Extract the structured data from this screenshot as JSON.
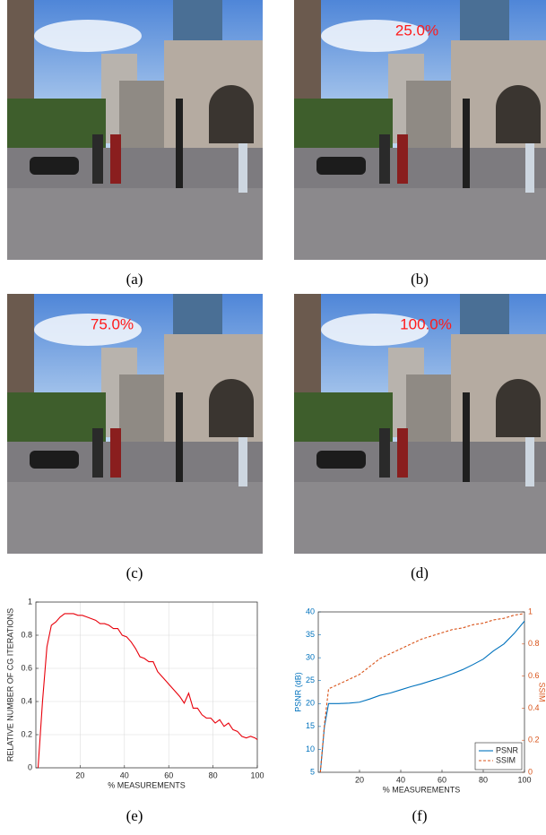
{
  "panels": [
    {
      "caption": "(a)"
    },
    {
      "caption": "(b)",
      "overlay": "25.0%"
    },
    {
      "caption": "(c)",
      "overlay": "75.0%"
    },
    {
      "caption": "(d)",
      "overlay": "100.0%"
    },
    {
      "caption": "(e)"
    },
    {
      "caption": "(f)"
    }
  ],
  "chart_data": [
    {
      "type": "line",
      "xlabel": "% MEASUREMENTS",
      "ylabel": "RELATIVE NUMBER OF CG ITERATIONS",
      "x": [
        1,
        3,
        5,
        7,
        9,
        11,
        13,
        15,
        17,
        19,
        21,
        23,
        25,
        27,
        29,
        31,
        33,
        35,
        37,
        39,
        41,
        43,
        45,
        47,
        49,
        51,
        53,
        55,
        57,
        59,
        61,
        63,
        65,
        67,
        69,
        71,
        73,
        75,
        77,
        79,
        81,
        83,
        85,
        87,
        89,
        91,
        93,
        95,
        97,
        99,
        100
      ],
      "values": [
        0,
        0.4,
        0.73,
        0.86,
        0.88,
        0.91,
        0.93,
        0.93,
        0.93,
        0.92,
        0.92,
        0.91,
        0.9,
        0.89,
        0.87,
        0.87,
        0.86,
        0.84,
        0.84,
        0.8,
        0.79,
        0.76,
        0.72,
        0.67,
        0.66,
        0.64,
        0.64,
        0.58,
        0.55,
        0.52,
        0.49,
        0.46,
        0.43,
        0.39,
        0.45,
        0.36,
        0.36,
        0.32,
        0.3,
        0.3,
        0.27,
        0.29,
        0.25,
        0.27,
        0.23,
        0.22,
        0.19,
        0.18,
        0.19,
        0.18,
        0.17
      ],
      "color": "#e8000b",
      "xlim": [
        0,
        100
      ],
      "xticks": [
        20,
        40,
        60,
        80,
        100
      ],
      "ylim": [
        0,
        1
      ],
      "yticks": [
        0,
        0.2,
        0.4,
        0.6,
        0.8,
        1
      ],
      "grid": true
    },
    {
      "type": "line",
      "xlabel": "% MEASUREMENTS",
      "ylabel": "PSNR (dB)",
      "y2label": "SSIM",
      "x": [
        1,
        3,
        5,
        10,
        15,
        20,
        25,
        30,
        35,
        40,
        45,
        50,
        55,
        60,
        65,
        70,
        75,
        80,
        85,
        90,
        95,
        100
      ],
      "series": [
        {
          "name": "PSNR",
          "color": "#0072bd",
          "line_style": "solid",
          "values": [
            5,
            15,
            20,
            20,
            20.1,
            20.3,
            21,
            21.8,
            22.3,
            23,
            23.7,
            24.3,
            25,
            25.7,
            26.5,
            27.4,
            28.5,
            29.7,
            31.5,
            33,
            35.3,
            38
          ]
        },
        {
          "name": "SSIM",
          "color": "#d95319",
          "line_style": "dashed",
          "axis": "y2",
          "values": [
            0,
            0.3,
            0.52,
            0.55,
            0.58,
            0.61,
            0.66,
            0.71,
            0.74,
            0.77,
            0.8,
            0.83,
            0.85,
            0.87,
            0.89,
            0.9,
            0.92,
            0.93,
            0.95,
            0.96,
            0.98,
            0.99
          ]
        }
      ],
      "xlim": [
        0,
        100
      ],
      "xticks": [
        20,
        40,
        60,
        80,
        100
      ],
      "ylim": [
        5,
        40
      ],
      "yticks": [
        5,
        10,
        15,
        20,
        25,
        30,
        35,
        40
      ],
      "y2lim": [
        0,
        1
      ],
      "y2ticks": [
        0,
        0.2,
        0.4,
        0.6,
        0.8,
        1
      ],
      "grid": false,
      "legend": "lower-right"
    }
  ]
}
